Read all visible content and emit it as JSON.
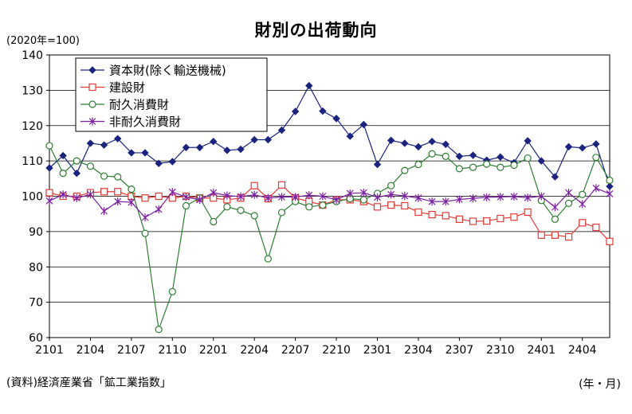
{
  "header": {
    "title": "財別の出荷動向",
    "y_unit": "(2020年=100)"
  },
  "footer": {
    "source": "(資料)経済産業省「鉱工業指数」",
    "x_unit": "(年・月)"
  },
  "colors": {
    "capital": "#1a237e",
    "construction": "#e53935",
    "durable": "#2e7d32",
    "nondurable": "#7b1fa2"
  },
  "chart_data": {
    "type": "line",
    "title": "財別の出荷動向",
    "ylabel": "(2020年=100)",
    "xlabel": "(年・月)",
    "ylim": [
      60,
      140
    ],
    "yticks": [
      60,
      70,
      80,
      90,
      100,
      110,
      120,
      130,
      140
    ],
    "xtick_labels": [
      "2101",
      "2104",
      "2107",
      "2110",
      "2201",
      "2204",
      "2207",
      "2210",
      "2301",
      "2304",
      "2307",
      "2310",
      "2401",
      "2404"
    ],
    "grid": true,
    "legend_position": "top-left",
    "x": [
      "2101",
      "2102",
      "2103",
      "2104",
      "2105",
      "2106",
      "2107",
      "2108",
      "2109",
      "2110",
      "2111",
      "2112",
      "2201",
      "2202",
      "2203",
      "2204",
      "2205",
      "2206",
      "2207",
      "2208",
      "2209",
      "2210",
      "2211",
      "2212",
      "2301",
      "2302",
      "2303",
      "2304",
      "2305",
      "2306",
      "2307",
      "2308",
      "2309",
      "2310",
      "2311",
      "2312",
      "2401",
      "2402",
      "2403",
      "2404",
      "2405",
      "2406"
    ],
    "series": [
      {
        "name": "資本財(除く輸送機械)",
        "marker": "diamond",
        "values": [
          108,
          111.5,
          106.5,
          115,
          114.5,
          116.3,
          112.3,
          112.3,
          109.3,
          109.8,
          113.8,
          113.8,
          115.5,
          113,
          113.3,
          116,
          116,
          118.7,
          124,
          131.3,
          124.1,
          122,
          117,
          120.3,
          109,
          115.8,
          115,
          114,
          115.5,
          114.7,
          111.3,
          111.6,
          110.2,
          111.1,
          109.5,
          115.7,
          110,
          105.5,
          114,
          113.7,
          114.8,
          102.8
        ]
      },
      {
        "name": "建設財",
        "marker": "square",
        "values": [
          101,
          100,
          100,
          101,
          101.3,
          101.3,
          100,
          99.5,
          100,
          99.5,
          100,
          99.5,
          99.5,
          99,
          99.5,
          103,
          99.3,
          103.2,
          99.5,
          98.5,
          97.5,
          99,
          99,
          98.5,
          97,
          97.5,
          97.3,
          95.5,
          94.8,
          94.5,
          93.5,
          92.9,
          93,
          93.7,
          94.1,
          95.5,
          89,
          89,
          88.5,
          92.5,
          91.2,
          87.2
        ]
      },
      {
        "name": "耐久消費財",
        "marker": "circle",
        "values": [
          114.3,
          106.5,
          110,
          108.5,
          105.7,
          105.5,
          102,
          89.5,
          62.3,
          73,
          97.3,
          99.5,
          92.8,
          97,
          96,
          94.5,
          82.3,
          95.4,
          98.5,
          97,
          97.5,
          98.5,
          99.3,
          99,
          100.8,
          103,
          107.3,
          109,
          112,
          111.3,
          107.8,
          108.2,
          109.1,
          108.2,
          108.8,
          110.8,
          98.8,
          93.5,
          98,
          100.5,
          111,
          104.5
        ]
      },
      {
        "name": "非耐久消費財",
        "marker": "asterisk",
        "values": [
          98.7,
          100.5,
          99.5,
          100.5,
          95.8,
          98.5,
          98.3,
          94,
          96.3,
          101.2,
          99.8,
          99,
          101,
          100.2,
          99.9,
          100.4,
          99.5,
          99.8,
          99.8,
          100.3,
          100,
          99,
          100.8,
          101,
          99.7,
          100.5,
          100.1,
          99.5,
          98.5,
          98.5,
          99.1,
          99.4,
          99.7,
          99.8,
          99.9,
          99.6,
          100,
          96.9,
          101,
          97.8,
          102.3,
          100.7
        ]
      }
    ]
  }
}
